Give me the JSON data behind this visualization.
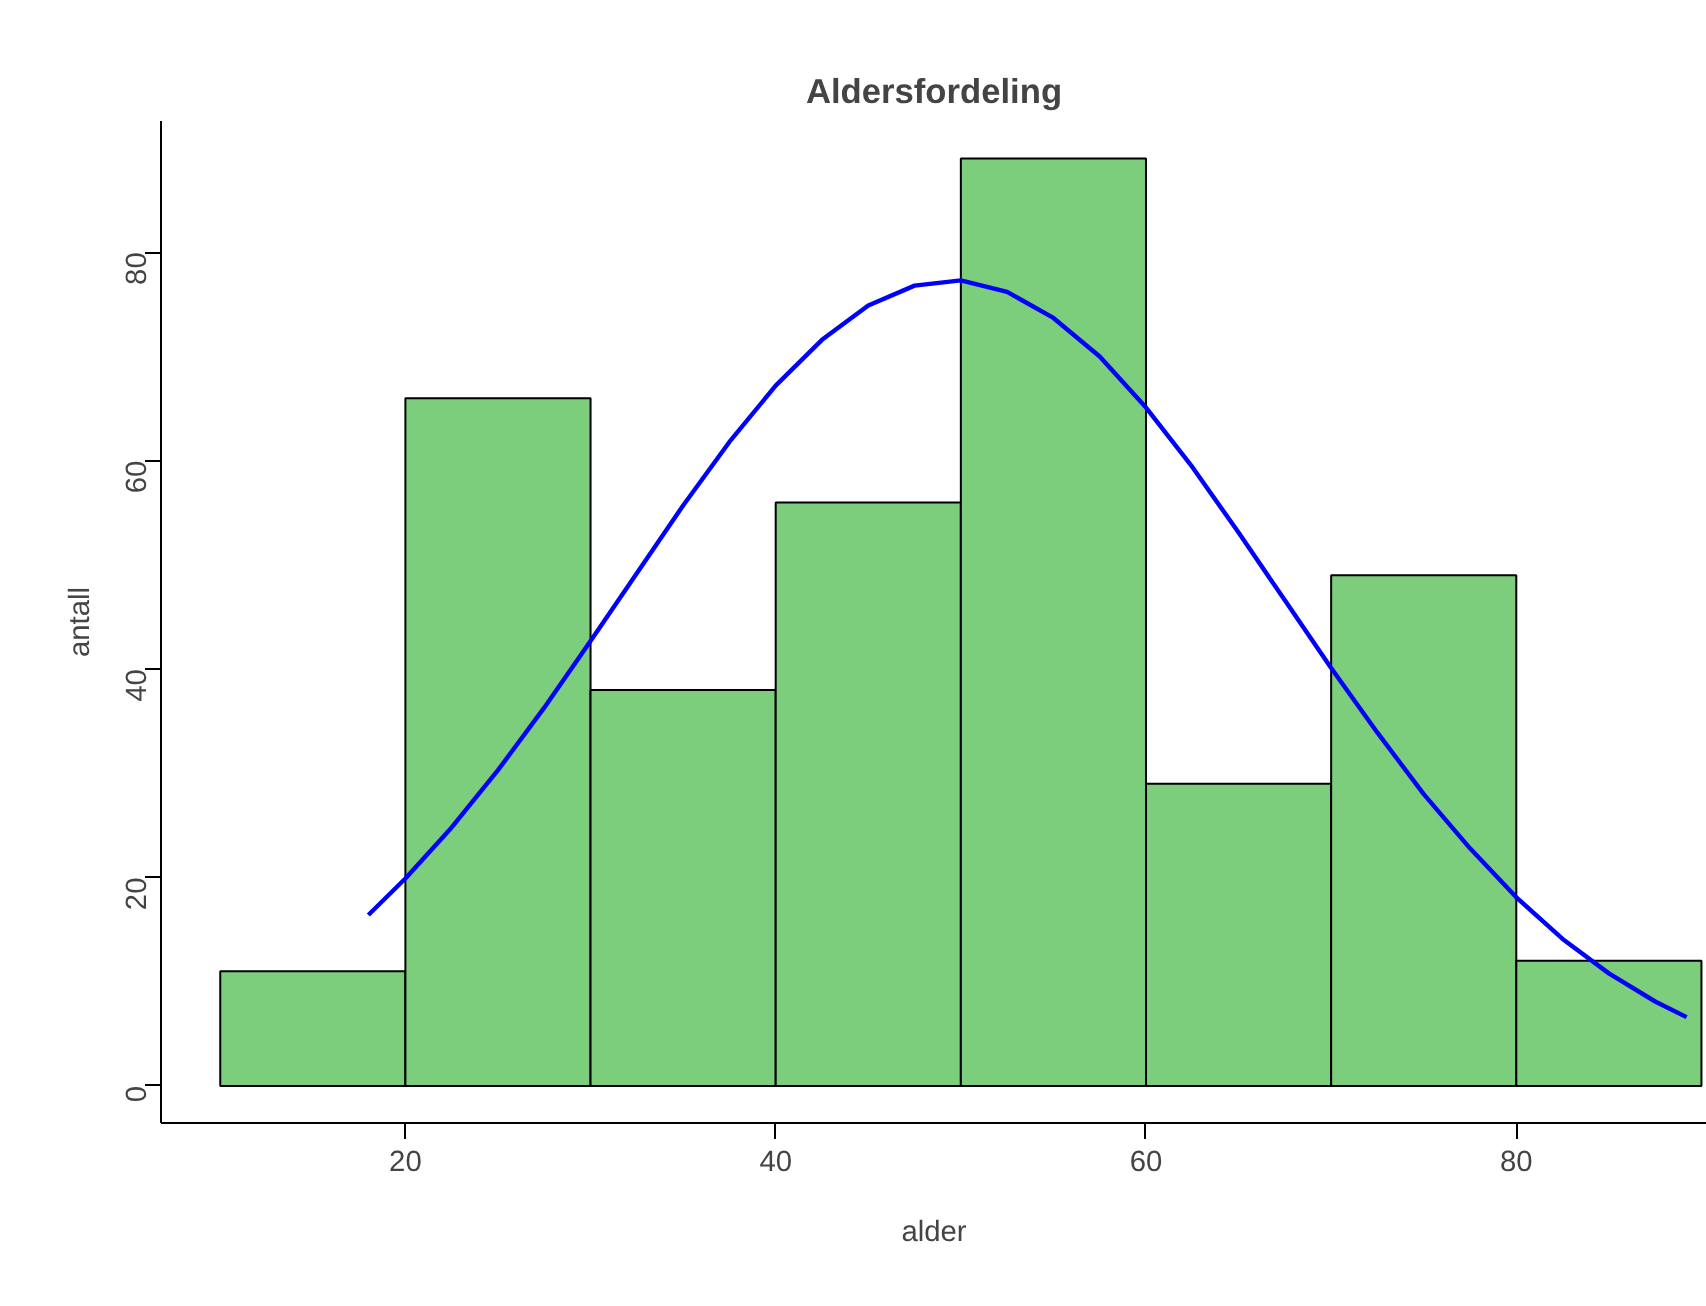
{
  "chart_data": {
    "type": "histogram",
    "title": "Aldersfordeling",
    "xlabel": "alder",
    "ylabel": "antall",
    "bins": [
      10,
      20,
      30,
      40,
      50,
      60,
      70,
      80,
      90
    ],
    "values": [
      11,
      66,
      38,
      56,
      89,
      29,
      49,
      12
    ],
    "color": "#7ccd7c",
    "series": [
      {
        "type": "line",
        "color": "#0000ff",
        "x": [
          18,
          20,
          22.5,
          25,
          27.5,
          30,
          32.5,
          35,
          37.5,
          40,
          42.5,
          45,
          47.5,
          50,
          52.5,
          55,
          57.5,
          60,
          62.5,
          65,
          67.5,
          70,
          72.5,
          75,
          77.5,
          80,
          82.5,
          85,
          87.5,
          89.2
        ],
        "values": [
          16.4,
          19.9,
          24.8,
          30.3,
          36.3,
          42.7,
          49.2,
          55.7,
          61.8,
          67.2,
          71.6,
          74.9,
          76.8,
          77.3,
          76.2,
          73.7,
          70.0,
          65.1,
          59.4,
          53.1,
          46.6,
          40.1,
          33.9,
          28.0,
          22.8,
          18.1,
          14.1,
          10.8,
          8.1,
          6.6
        ]
      }
    ],
    "xlim": [
      6.8,
      90.3
    ],
    "ylim": [
      -3.56,
      92.6
    ],
    "xticks": [
      20,
      40,
      60,
      80
    ],
    "yticks": [
      0,
      20,
      40,
      60,
      80
    ],
    "grid": false
  }
}
